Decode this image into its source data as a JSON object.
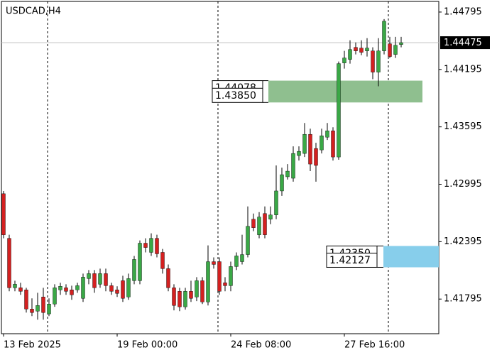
{
  "chart_data": {
    "type": "candlestick",
    "title": "USDCAD,H4",
    "categories": [
      "13 Feb 2025",
      null,
      null,
      null,
      null,
      null,
      null,
      null,
      null,
      null,
      null,
      null,
      null,
      null,
      null,
      null,
      null,
      null,
      null,
      null,
      "19 Feb 00:00",
      null,
      null,
      null,
      null,
      null,
      null,
      null,
      null,
      null,
      null,
      null,
      null,
      null,
      null,
      null,
      null,
      null,
      null,
      null,
      "24 Feb 08:00",
      null,
      null,
      null,
      null,
      null,
      null,
      null,
      null,
      null,
      null,
      null,
      null,
      null,
      null,
      null,
      null,
      null,
      null,
      null,
      "27 Feb 16:00",
      null,
      null,
      null,
      null,
      null,
      null,
      null,
      null,
      null,
      null
    ],
    "open": [
      1.42896,
      1.4243,
      1.41913,
      1.41913,
      1.41891,
      1.41691,
      1.41669,
      1.41817,
      1.4164,
      1.41743,
      1.41891,
      1.41913,
      1.41891,
      1.41891,
      1.41802,
      1.42009,
      1.42061,
      1.4195,
      1.42061,
      1.41935,
      1.41891,
      1.41987,
      1.41817,
      1.41987,
      1.41987,
      1.42379,
      1.42283,
      1.4243,
      1.42283,
      1.42113,
      1.41913,
      1.41876,
      1.41714,
      1.41876,
      1.41817,
      1.41987,
      1.41765,
      1.42186,
      1.42186,
      1.41965,
      1.41935,
      1.42135,
      1.42186,
      1.4226,
      1.4263,
      1.42467,
      1.42689,
      1.4263,
      1.42674,
      1.42925,
      1.43073,
      1.43058,
      1.43295,
      1.43317,
      1.43517,
      1.43369,
      1.43354,
      1.43487,
      1.43554,
      1.4328,
      1.44263,
      1.443,
      1.44426,
      1.44418,
      1.44389,
      1.44389,
      1.44167,
      1.44389,
      1.44463,
      1.44352,
      1.44455
    ],
    "high": [
      1.42925,
      1.42467,
      1.41987,
      1.41965,
      1.41913,
      1.41802,
      1.41861,
      1.41913,
      1.41802,
      1.4195,
      1.41965,
      1.4195,
      1.41935,
      1.41965,
      1.42061,
      1.42098,
      1.42098,
      1.42113,
      1.42113,
      1.41965,
      1.41928,
      1.42039,
      1.42061,
      1.42246,
      1.42408,
      1.4243,
      1.42482,
      1.42467,
      1.42319,
      1.42157,
      1.4195,
      1.41913,
      1.41913,
      1.41987,
      1.42024,
      1.42024,
      1.42356,
      1.42231,
      1.42231,
      1.42024,
      1.42186,
      1.42283,
      1.42467,
      1.42763,
      1.42689,
      1.42704,
      1.42763,
      1.42763,
      1.43192,
      1.43169,
      1.43206,
      1.43391,
      1.43391,
      1.43635,
      1.43576,
      1.43428,
      1.43576,
      1.43635,
      1.43591,
      1.44278,
      1.44389,
      1.445,
      1.44477,
      1.445,
      1.44522,
      1.44426,
      1.44522,
      1.44721,
      1.44536,
      1.44536,
      1.44536
    ],
    "low": [
      1.4243,
      1.41876,
      1.41876,
      1.41839,
      1.41654,
      1.41617,
      1.4158,
      1.4158,
      1.41617,
      1.41714,
      1.41839,
      1.41839,
      1.41787,
      1.41861,
      1.41765,
      1.4195,
      1.41861,
      1.41913,
      1.41876,
      1.41839,
      1.41817,
      1.41765,
      1.41787,
      1.4195,
      1.4195,
      1.42283,
      1.42246,
      1.42231,
      1.42061,
      1.41876,
      1.41677,
      1.41669,
      1.41684,
      1.41765,
      1.41773,
      1.41743,
      1.41728,
      1.42113,
      1.41839,
      1.41876,
      1.41876,
      1.42098,
      1.42157,
      1.42231,
      1.42504,
      1.4243,
      1.4243,
      1.42578,
      1.4263,
      1.42874,
      1.43044,
      1.43022,
      1.43243,
      1.4328,
      1.43132,
      1.43022,
      1.43317,
      1.43458,
      1.43243,
      1.43251,
      1.44204,
      1.44256,
      1.44352,
      1.44344,
      1.4433,
      1.44093,
      1.44019,
      1.44352,
      1.44315,
      1.44315,
      1.44426
    ],
    "close": [
      1.42467,
      1.41913,
      1.4195,
      1.41876,
      1.41691,
      1.41654,
      1.41728,
      1.41654,
      1.41743,
      1.41913,
      1.41928,
      1.41876,
      1.41839,
      1.41935,
      1.42024,
      1.42061,
      1.41913,
      1.42061,
      1.41935,
      1.41876,
      1.41854,
      1.41802,
      1.42009,
      1.42209,
      1.42379,
      1.42334,
      1.4243,
      1.42268,
      1.42113,
      1.41913,
      1.41728,
      1.41714,
      1.41876,
      1.41802,
      1.41987,
      1.41765,
      1.42186,
      1.42157,
      1.41876,
      1.41935,
      1.42135,
      1.42246,
      1.4226,
      1.42556,
      1.42541,
      1.42652,
      1.42467,
      1.42674,
      1.42925,
      1.43095,
      1.43132,
      1.43317,
      1.43339,
      1.43517,
      1.43206,
      1.43192,
      1.43502,
      1.43554,
      1.4328,
      1.44256,
      1.44315,
      1.44403,
      1.44389,
      1.44374,
      1.44418,
      1.44167,
      1.44389,
      1.44699,
      1.4433,
      1.44448,
      1.44475
    ],
    "up_color": "#3aa846",
    "down_color": "#d42020",
    "ylim": [
      1.41433,
      1.44906
    ],
    "yticks": [
      1.41795,
      1.42395,
      1.42995,
      1.43595,
      1.44195,
      1.44795
    ],
    "current_price": 1.44475,
    "zones": [
      {
        "top": 1.44078,
        "bottom": {
          "value": 1.4385,
          "label": "1.43850"
        },
        "color": "#8fbf8f"
      },
      {
        "top": {
          "value": 1.4235,
          "label": "1.42350"
        },
        "bottom": 1.42127,
        "color": "#87ceeb"
      }
    ]
  }
}
